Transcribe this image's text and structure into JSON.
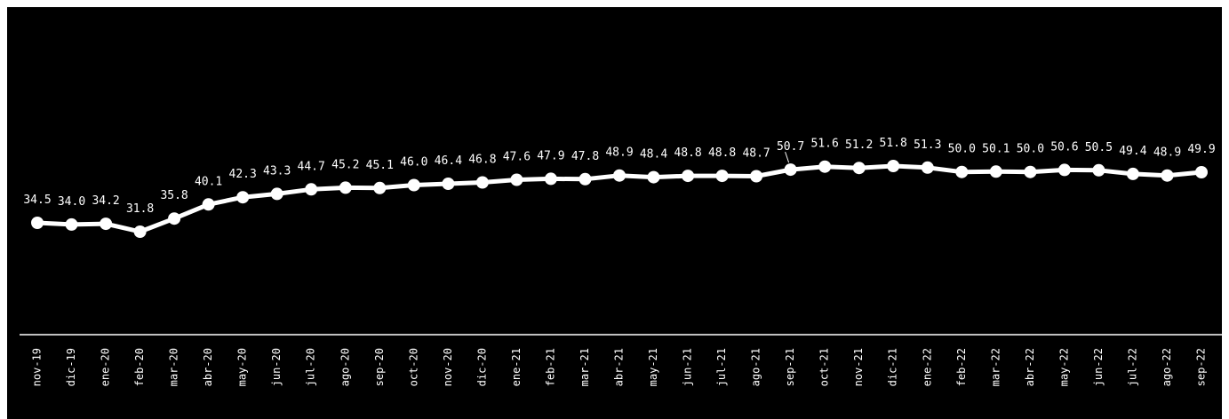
{
  "colors": {
    "background": "#000000",
    "frame": "#ffffff",
    "line": "#ffffff",
    "marker": "#ffffff",
    "text": "#ffffff",
    "axis": "#ffffff"
  },
  "chart_data": {
    "type": "line",
    "title": "",
    "xlabel": "",
    "ylabel": "",
    "grid": false,
    "legend": "none",
    "categories": [
      "nov-19",
      "dic-19",
      "ene-20",
      "feb-20",
      "mar-20",
      "abr-20",
      "may-20",
      "jun-20",
      "jul-20",
      "ago-20",
      "sep-20",
      "oct-20",
      "nov-20",
      "dic-20",
      "ene-21",
      "feb-21",
      "mar-21",
      "abr-21",
      "may-21",
      "jun-21",
      "jul-21",
      "ago-21",
      "sep-21",
      "oct-21",
      "nov-21",
      "dic-21",
      "ene-22",
      "feb-22",
      "mar-22",
      "abr-22",
      "may-22",
      "jun-22",
      "jul-22",
      "ago-22",
      "sep-22"
    ],
    "values": [
      34.5,
      34.0,
      34.2,
      31.8,
      35.8,
      40.1,
      42.3,
      43.3,
      44.7,
      45.2,
      45.1,
      46.0,
      46.4,
      46.8,
      47.6,
      47.9,
      47.8,
      48.9,
      48.4,
      48.8,
      48.8,
      48.7,
      50.7,
      51.6,
      51.2,
      51.8,
      51.3,
      50.0,
      50.1,
      50.0,
      50.6,
      50.5,
      49.4,
      48.9,
      49.9
    ],
    "value_labels": [
      "34.5",
      "34.0",
      "34.2",
      "31.8",
      "35.8",
      "40.1",
      "42.3",
      "43.3",
      "44.7",
      "45.2",
      "45.1",
      "46.0",
      "46.4",
      "46.8",
      "47.6",
      "47.9",
      "47.8",
      "48.9",
      "48.4",
      "48.8",
      "48.8",
      "48.7",
      "50.7",
      "51.6",
      "51.2",
      "51.8",
      "51.3",
      "50.0",
      "50.1",
      "50.0",
      "50.6",
      "50.5",
      "49.4",
      "48.9",
      "49.9"
    ]
  }
}
